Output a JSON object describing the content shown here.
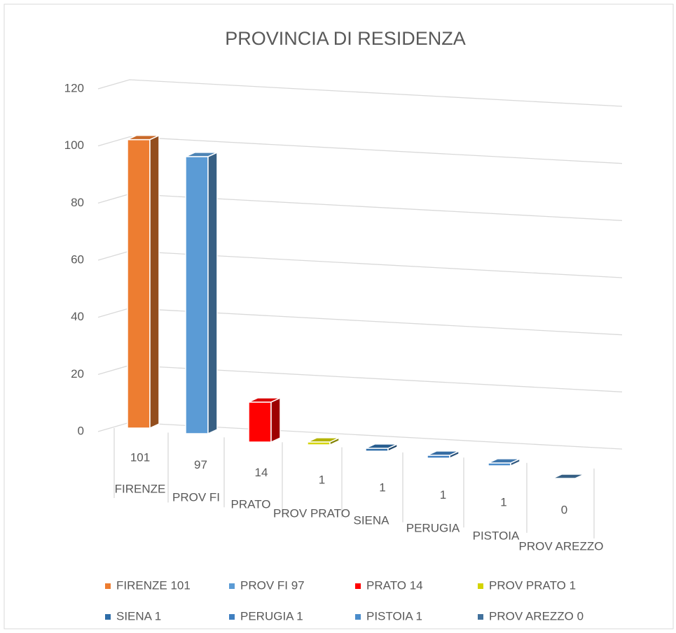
{
  "chart_data": {
    "type": "bar3d",
    "title": "PROVINCIA DI RESIDENZA",
    "categories": [
      "FIRENZE",
      "PROV FI",
      "PRATO",
      "PROV PRATO",
      "SIENA",
      "PERUGIA",
      "PISTOIA",
      "PROV AREZZO"
    ],
    "values": [
      101,
      97,
      14,
      1,
      1,
      1,
      1,
      0
    ],
    "colors": [
      "#ED7D31",
      "#5B9BD5",
      "#FF0000",
      "#D4D400",
      "#2E6DA8",
      "#3F7FC0",
      "#4A8CCB",
      "#41719C"
    ],
    "legend": [
      "FIRENZE 101",
      "PROV FI 97",
      "PRATO 14",
      "PROV PRATO 1",
      "SIENA 1",
      "PERUGIA 1",
      "PISTOIA 1",
      "PROV AREZZO 0"
    ],
    "ylim": [
      0,
      120
    ],
    "yticks": [
      0,
      20,
      40,
      60,
      80,
      100,
      120
    ],
    "grid": true
  }
}
